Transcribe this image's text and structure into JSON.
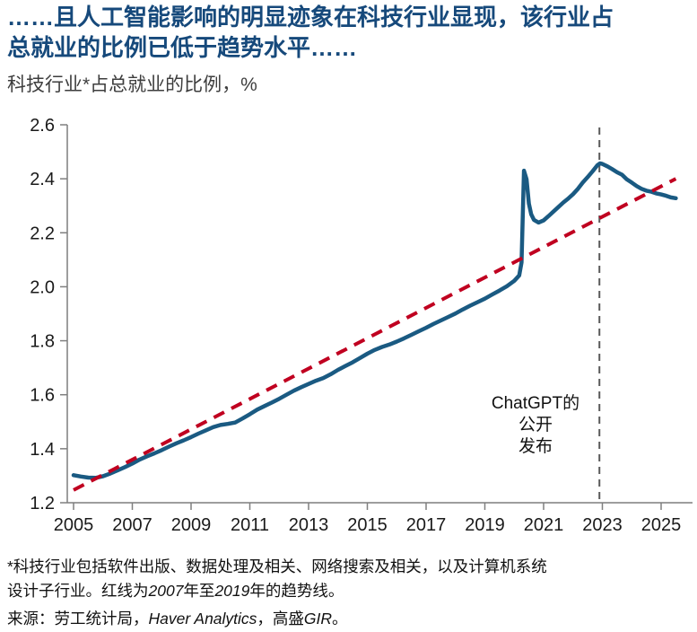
{
  "header": {
    "title": "……且人工智能影响的明显迹象在科技行业显现，该行业占\n总就业的比例已低于趋势水平……",
    "subtitle": "科技行业*占总就业的比例，%"
  },
  "annotation": {
    "text": "ChatGPT的\n公开\n发布"
  },
  "footnote": {
    "part1": "*科技行业包括软件出版、数据处理及相关、网络搜索及相关，以及计算机系统\n设计子行业。红线为",
    "year1": "2007",
    "part2": "年至",
    "year2": "2019",
    "part3": "年的趋势线。"
  },
  "source": {
    "part1": "来源：劳工统计局，",
    "italic1": "Haver Analytics",
    "part2": "，高盛",
    "italic2": "GIR",
    "part3": "。"
  },
  "colors": {
    "title_navy": "#16497b",
    "series_blue": "#1a5a82",
    "trend_red": "#c00020",
    "vline_gray": "#595959",
    "axis_gray": "#7f7f7f",
    "tick_text": "#1a1a1a"
  },
  "chart_data": {
    "type": "line",
    "title": "……且人工智能影响的明显迹象在科技行业显现，该行业占总就业的比例已低于趋势水平……",
    "subtitle": "科技行业*占总就业的比例，%",
    "xlabel": "",
    "ylabel": "%",
    "xlim": [
      2005,
      2026
    ],
    "ylim": [
      1.2,
      2.6
    ],
    "x_ticks": [
      2005,
      2007,
      2009,
      2011,
      2013,
      2015,
      2017,
      2019,
      2021,
      2023,
      2025
    ],
    "y_ticks": [
      1.2,
      1.4,
      1.6,
      1.8,
      2.0,
      2.2,
      2.4,
      2.6
    ],
    "grid": false,
    "legend": "none",
    "vline": {
      "x": 2022.9,
      "label": "ChatGPT的公开发布",
      "color": "#595959",
      "style": "dashed"
    },
    "series": [
      {
        "name": "科技行业占总就业的比例",
        "color": "#1a5a82",
        "style": "solid",
        "points": [
          [
            2005.0,
            1.302
          ],
          [
            2005.25,
            1.297
          ],
          [
            2005.5,
            1.293
          ],
          [
            2005.75,
            1.292
          ],
          [
            2006.0,
            1.298
          ],
          [
            2006.25,
            1.308
          ],
          [
            2006.5,
            1.32
          ],
          [
            2006.75,
            1.332
          ],
          [
            2007.0,
            1.345
          ],
          [
            2007.25,
            1.36
          ],
          [
            2007.5,
            1.372
          ],
          [
            2007.75,
            1.383
          ],
          [
            2008.0,
            1.395
          ],
          [
            2008.25,
            1.408
          ],
          [
            2008.5,
            1.42
          ],
          [
            2008.75,
            1.431
          ],
          [
            2009.0,
            1.443
          ],
          [
            2009.25,
            1.456
          ],
          [
            2009.5,
            1.468
          ],
          [
            2009.75,
            1.48
          ],
          [
            2010.0,
            1.488
          ],
          [
            2010.25,
            1.492
          ],
          [
            2010.5,
            1.497
          ],
          [
            2010.75,
            1.512
          ],
          [
            2011.0,
            1.528
          ],
          [
            2011.25,
            1.545
          ],
          [
            2011.5,
            1.558
          ],
          [
            2011.75,
            1.571
          ],
          [
            2012.0,
            1.585
          ],
          [
            2012.25,
            1.6
          ],
          [
            2012.5,
            1.615
          ],
          [
            2012.75,
            1.628
          ],
          [
            2013.0,
            1.64
          ],
          [
            2013.25,
            1.652
          ],
          [
            2013.5,
            1.662
          ],
          [
            2013.75,
            1.676
          ],
          [
            2014.0,
            1.692
          ],
          [
            2014.25,
            1.706
          ],
          [
            2014.5,
            1.72
          ],
          [
            2014.75,
            1.736
          ],
          [
            2015.0,
            1.752
          ],
          [
            2015.25,
            1.766
          ],
          [
            2015.5,
            1.777
          ],
          [
            2015.75,
            1.786
          ],
          [
            2016.0,
            1.797
          ],
          [
            2016.25,
            1.809
          ],
          [
            2016.5,
            1.822
          ],
          [
            2016.75,
            1.835
          ],
          [
            2017.0,
            1.848
          ],
          [
            2017.25,
            1.862
          ],
          [
            2017.5,
            1.875
          ],
          [
            2017.75,
            1.888
          ],
          [
            2018.0,
            1.901
          ],
          [
            2018.25,
            1.916
          ],
          [
            2018.5,
            1.93
          ],
          [
            2018.75,
            1.943
          ],
          [
            2019.0,
            1.956
          ],
          [
            2019.25,
            1.971
          ],
          [
            2019.5,
            1.986
          ],
          [
            2019.75,
            2.002
          ],
          [
            2020.0,
            2.022
          ],
          [
            2020.17,
            2.042
          ],
          [
            2020.25,
            2.09
          ],
          [
            2020.33,
            2.43
          ],
          [
            2020.42,
            2.398
          ],
          [
            2020.5,
            2.308
          ],
          [
            2020.58,
            2.268
          ],
          [
            2020.67,
            2.248
          ],
          [
            2020.83,
            2.238
          ],
          [
            2021.0,
            2.246
          ],
          [
            2021.17,
            2.262
          ],
          [
            2021.33,
            2.278
          ],
          [
            2021.5,
            2.295
          ],
          [
            2021.67,
            2.312
          ],
          [
            2021.83,
            2.326
          ],
          [
            2022.0,
            2.343
          ],
          [
            2022.17,
            2.363
          ],
          [
            2022.33,
            2.386
          ],
          [
            2022.5,
            2.406
          ],
          [
            2022.67,
            2.428
          ],
          [
            2022.83,
            2.45
          ],
          [
            2022.92,
            2.457
          ],
          [
            2023.0,
            2.455
          ],
          [
            2023.17,
            2.446
          ],
          [
            2023.33,
            2.436
          ],
          [
            2023.5,
            2.424
          ],
          [
            2023.67,
            2.415
          ],
          [
            2023.83,
            2.398
          ],
          [
            2024.0,
            2.386
          ],
          [
            2024.17,
            2.373
          ],
          [
            2024.33,
            2.363
          ],
          [
            2024.5,
            2.356
          ],
          [
            2024.67,
            2.352
          ],
          [
            2024.83,
            2.346
          ],
          [
            2025.0,
            2.342
          ],
          [
            2025.17,
            2.337
          ],
          [
            2025.33,
            2.331
          ],
          [
            2025.5,
            2.328
          ]
        ]
      },
      {
        "name": "趋势线（2007年至2019年）",
        "color": "#c00020",
        "style": "dashed",
        "points": [
          [
            2005.0,
            1.247
          ],
          [
            2025.5,
            2.4
          ]
        ]
      }
    ]
  }
}
